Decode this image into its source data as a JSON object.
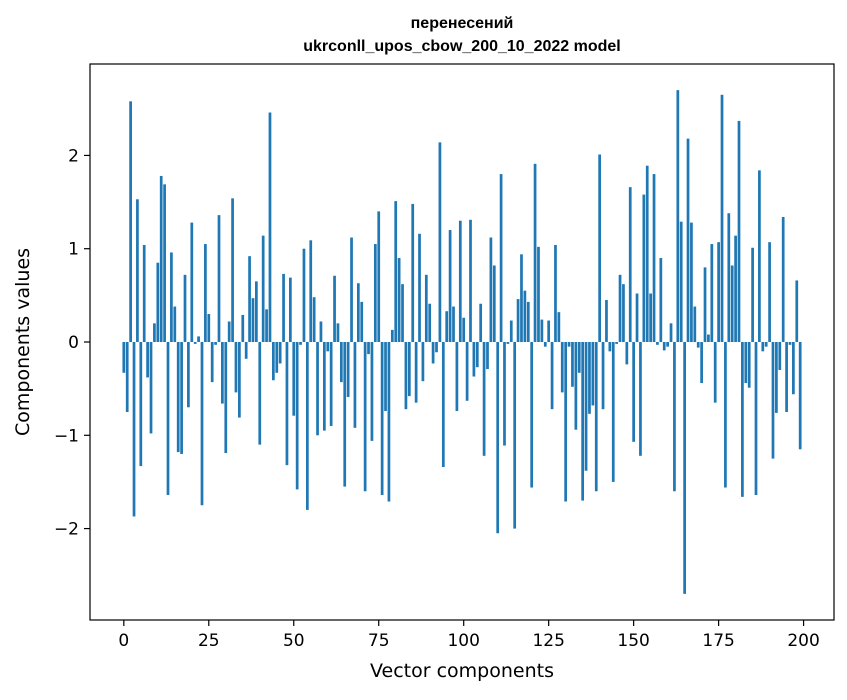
{
  "chart_data": {
    "type": "bar",
    "title_line1": "перенесений",
    "title_line2": "ukrconll_upos_cbow_200_10_2022 model",
    "xlabel": "Vector components",
    "ylabel": "Components values",
    "xlim": [
      -9.95,
      208.95
    ],
    "ylim": [
      -2.98,
      2.98
    ],
    "xticks": [
      0,
      25,
      50,
      75,
      100,
      125,
      150,
      175,
      200
    ],
    "xtick_labels": [
      "0",
      "25",
      "50",
      "75",
      "100",
      "125",
      "150",
      "175",
      "200"
    ],
    "yticks": [
      -2,
      -1,
      0,
      1,
      2
    ],
    "ytick_labels": [
      "−2",
      "−1",
      "0",
      "1",
      "2"
    ],
    "bar_color": "#1f77b4",
    "grid": false,
    "x": [
      0,
      1,
      2,
      3,
      4,
      5,
      6,
      7,
      8,
      9,
      10,
      11,
      12,
      13,
      14,
      15,
      16,
      17,
      18,
      19,
      20,
      21,
      22,
      23,
      24,
      25,
      26,
      27,
      28,
      29,
      30,
      31,
      32,
      33,
      34,
      35,
      36,
      37,
      38,
      39,
      40,
      41,
      42,
      43,
      44,
      45,
      46,
      47,
      48,
      49,
      50,
      51,
      52,
      53,
      54,
      55,
      56,
      57,
      58,
      59,
      60,
      61,
      62,
      63,
      64,
      65,
      66,
      67,
      68,
      69,
      70,
      71,
      72,
      73,
      74,
      75,
      76,
      77,
      78,
      79,
      80,
      81,
      82,
      83,
      84,
      85,
      86,
      87,
      88,
      89,
      90,
      91,
      92,
      93,
      94,
      95,
      96,
      97,
      98,
      99,
      100,
      101,
      102,
      103,
      104,
      105,
      106,
      107,
      108,
      109,
      110,
      111,
      112,
      113,
      114,
      115,
      116,
      117,
      118,
      119,
      120,
      121,
      122,
      123,
      124,
      125,
      126,
      127,
      128,
      129,
      130,
      131,
      132,
      133,
      134,
      135,
      136,
      137,
      138,
      139,
      140,
      141,
      142,
      143,
      144,
      145,
      146,
      147,
      148,
      149,
      150,
      151,
      152,
      153,
      154,
      155,
      156,
      157,
      158,
      159,
      160,
      161,
      162,
      163,
      164,
      165,
      166,
      167,
      168,
      169,
      170,
      171,
      172,
      173,
      174,
      175,
      176,
      177,
      178,
      179,
      180,
      181,
      182,
      183,
      184,
      185,
      186,
      187,
      188,
      189,
      190,
      191,
      192,
      193,
      194,
      195,
      196,
      197,
      198,
      199
    ],
    "values": [
      -0.33,
      -0.75,
      2.58,
      -1.87,
      1.53,
      -1.33,
      1.04,
      -0.38,
      -0.98,
      0.2,
      0.85,
      1.78,
      1.69,
      -1.64,
      0.96,
      0.38,
      -1.18,
      -1.2,
      0.72,
      -0.7,
      1.28,
      -0.02,
      0.06,
      -1.75,
      1.05,
      0.3,
      -0.43,
      -0.03,
      1.36,
      -0.66,
      -1.19,
      0.22,
      1.54,
      -0.54,
      -0.81,
      0.29,
      -0.18,
      0.92,
      0.47,
      0.65,
      -1.1,
      1.14,
      0.35,
      2.46,
      -0.41,
      -0.33,
      -0.23,
      0.73,
      -1.32,
      0.69,
      -0.79,
      -1.58,
      -0.03,
      1.0,
      -1.8,
      1.09,
      0.48,
      -1.0,
      0.22,
      -0.95,
      -0.1,
      -0.9,
      0.71,
      0.2,
      -0.43,
      -1.55,
      -0.59,
      1.12,
      -0.92,
      0.63,
      0.43,
      -1.6,
      -0.13,
      -1.06,
      1.05,
      1.4,
      -1.64,
      -0.74,
      -1.71,
      0.13,
      1.51,
      0.9,
      0.62,
      -0.72,
      -0.58,
      1.48,
      -0.65,
      1.16,
      -0.42,
      0.72,
      0.41,
      -0.23,
      -0.11,
      2.14,
      -1.34,
      0.33,
      1.2,
      0.38,
      -0.74,
      1.3,
      0.26,
      -0.63,
      1.31,
      -0.37,
      -0.27,
      0.41,
      -1.22,
      -0.29,
      1.12,
      0.82,
      -2.05,
      1.8,
      -1.11,
      -0.02,
      0.23,
      -2.0,
      0.46,
      0.94,
      0.55,
      0.43,
      -1.56,
      1.91,
      1.02,
      0.24,
      -0.05,
      0.23,
      -0.72,
      1.04,
      0.32,
      -0.54,
      -1.71,
      -0.05,
      -0.48,
      -0.94,
      -0.33,
      -1.7,
      -1.38,
      -0.77,
      -0.68,
      -1.6,
      2.01,
      -0.72,
      0.45,
      -0.1,
      -1.5,
      -0.02,
      0.72,
      0.62,
      -0.24,
      1.66,
      -1.07,
      0.52,
      -1.22,
      1.58,
      1.89,
      0.52,
      1.8,
      -0.03,
      0.9,
      -0.09,
      -0.05,
      0.2,
      -1.6,
      2.7,
      1.29,
      -2.7,
      2.18,
      1.28,
      0.38,
      -0.06,
      -0.44,
      0.8,
      0.08,
      1.05,
      -0.65,
      1.07,
      2.65,
      -1.56,
      1.38,
      0.82,
      1.14,
      2.37,
      -1.66,
      -0.44,
      -0.49,
      1.01,
      -1.64,
      1.84,
      -0.1,
      -0.05,
      1.07,
      -1.25,
      -0.76,
      -0.3,
      1.34,
      -0.75,
      -0.03,
      -0.56,
      0.66,
      -1.15
    ]
  }
}
